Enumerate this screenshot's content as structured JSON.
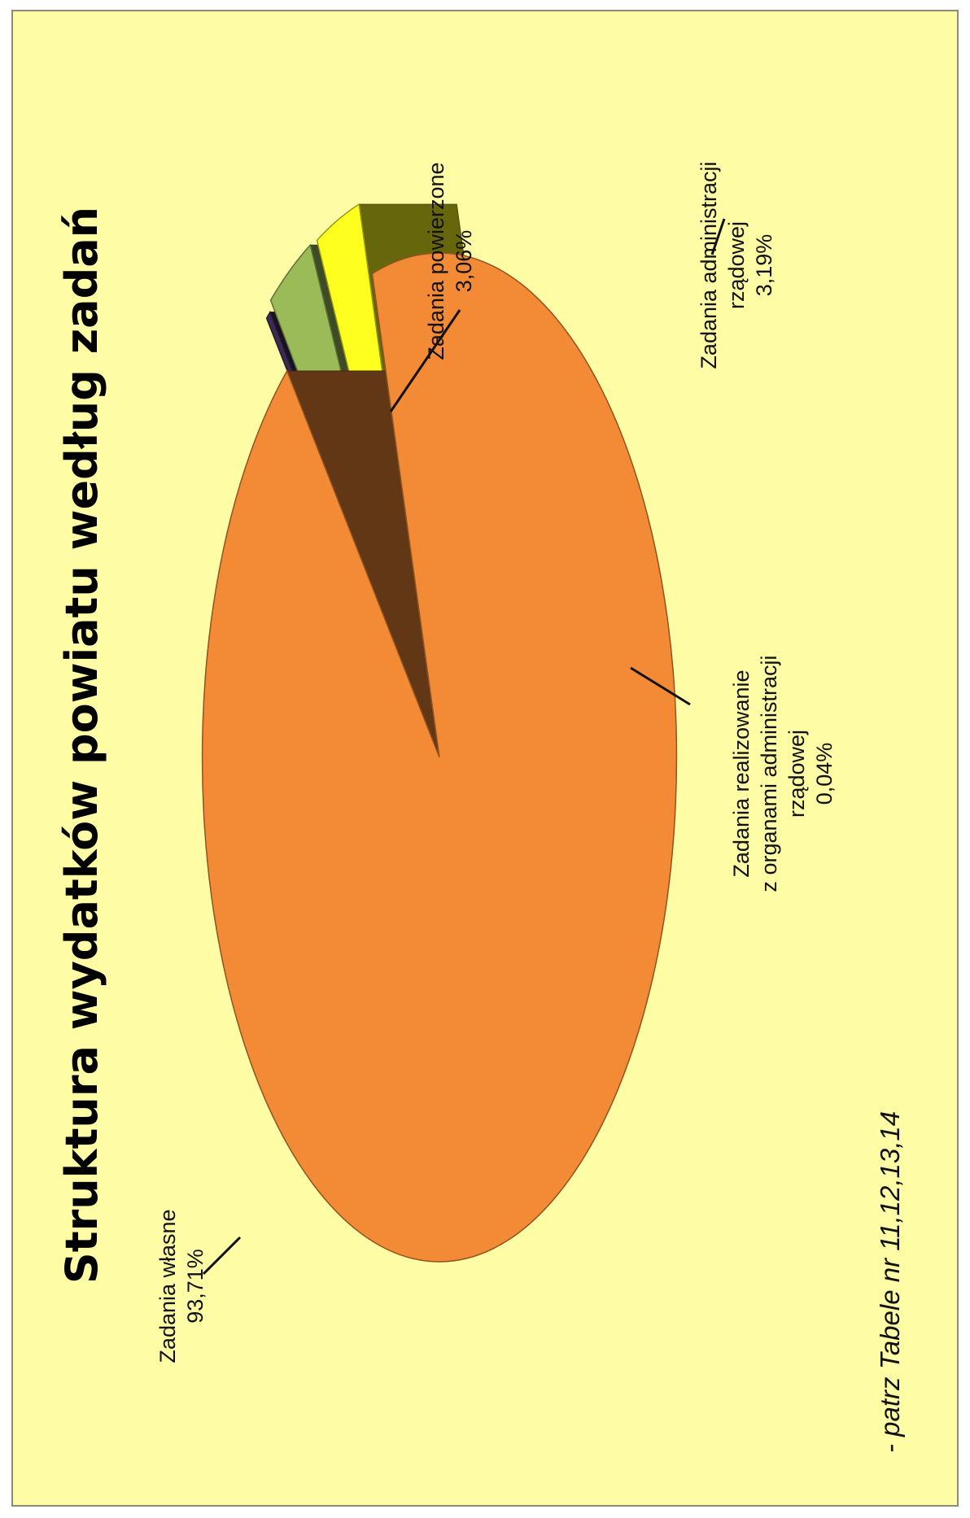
{
  "chart_data": {
    "type": "pie",
    "title": "Struktura wydatków powiatu według zadań",
    "note": "- patrz Tabele nr 11,12,13,14",
    "slices": [
      {
        "label_lines": [
          "Zadania własne"
        ],
        "value": 93.71,
        "value_label": "93,71%",
        "color": "#f28a36",
        "exploded": false
      },
      {
        "label_lines": [
          "Zadania realizowanie",
          "z organami administracji",
          "rządowej"
        ],
        "value": 0.04,
        "value_label": "0,04%",
        "color": "#3b2a52",
        "exploded": true
      },
      {
        "label_lines": [
          "Zadania administracji",
          "rządowej"
        ],
        "value": 3.19,
        "value_label": "3,19%",
        "color": "#9bbb59",
        "exploded": true
      },
      {
        "label_lines": [
          "Zadania powierzone"
        ],
        "value": 3.06,
        "value_label": "3,06%",
        "color": "#ffff1f",
        "exploded": true
      }
    ],
    "unit": "%",
    "style": "3d-exploded-pie",
    "legend": "none"
  }
}
